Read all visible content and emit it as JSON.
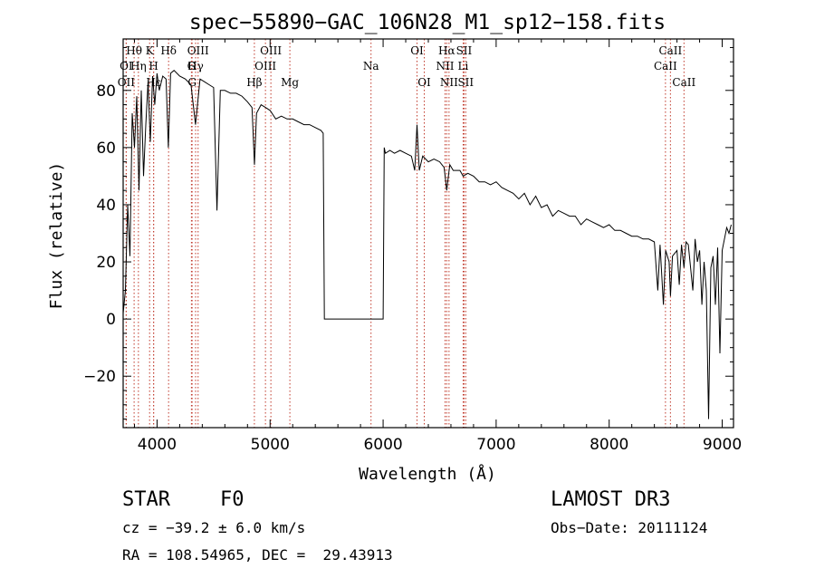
{
  "chart_data": {
    "type": "line",
    "title": "spec−55890−GAC_106N28_M1_sp12−158.fits",
    "xlabel": "Wavelength (Å)",
    "ylabel": "Flux (relative)",
    "xlim": [
      3700,
      9100
    ],
    "ylim": [
      -38,
      98
    ],
    "xticks": [
      4000,
      5000,
      6000,
      7000,
      8000,
      9000
    ],
    "yticks": [
      -20,
      0,
      20,
      40,
      60,
      80
    ],
    "grid": false,
    "series": [
      {
        "name": "flux",
        "x": [
          3700,
          3720,
          3740,
          3760,
          3780,
          3800,
          3820,
          3840,
          3860,
          3880,
          3900,
          3920,
          3940,
          3960,
          3980,
          4000,
          4020,
          4050,
          4080,
          4100,
          4120,
          4150,
          4200,
          4250,
          4300,
          4340,
          4380,
          4420,
          4460,
          4500,
          4530,
          4560,
          4600,
          4650,
          4700,
          4750,
          4800,
          4840,
          4862,
          4880,
          4920,
          4960,
          5000,
          5050,
          5100,
          5150,
          5200,
          5250,
          5300,
          5350,
          5400,
          5450,
          5470,
          5480,
          5500,
          6000,
          6010,
          6020,
          6060,
          6100,
          6150,
          6200,
          6250,
          6280,
          6300,
          6320,
          6350,
          6400,
          6450,
          6500,
          6540,
          6563,
          6590,
          6620,
          6680,
          6708,
          6750,
          6800,
          6850,
          6900,
          6950,
          7000,
          7050,
          7100,
          7150,
          7200,
          7250,
          7300,
          7350,
          7400,
          7450,
          7500,
          7550,
          7600,
          7650,
          7700,
          7750,
          7800,
          7850,
          7900,
          7950,
          8000,
          8050,
          8100,
          8150,
          8200,
          8250,
          8300,
          8350,
          8400,
          8430,
          8450,
          8480,
          8500,
          8530,
          8542,
          8560,
          8600,
          8620,
          8640,
          8662,
          8680,
          8700,
          8740,
          8760,
          8780,
          8800,
          8820,
          8840,
          8860,
          8880,
          8900,
          8920,
          8940,
          8960,
          8980,
          9000,
          9020,
          9040,
          9060,
          9080
        ],
        "values": [
          2,
          10,
          40,
          22,
          72,
          60,
          78,
          45,
          80,
          50,
          68,
          83,
          62,
          85,
          75,
          86,
          80,
          85,
          84,
          60,
          86,
          87,
          85,
          84,
          82,
          68,
          84,
          83,
          82,
          81,
          38,
          80,
          80,
          79,
          79,
          78,
          76,
          74,
          54,
          72,
          75,
          74,
          73,
          70,
          71,
          70,
          70,
          69,
          68,
          68,
          67,
          66,
          65,
          0,
          0,
          0,
          60,
          58,
          59,
          58,
          59,
          58,
          57,
          52,
          68,
          52,
          57,
          55,
          56,
          55,
          53,
          45,
          54,
          52,
          52,
          50,
          51,
          50,
          48,
          48,
          47,
          48,
          46,
          45,
          44,
          42,
          44,
          40,
          43,
          39,
          40,
          36,
          38,
          37,
          36,
          36,
          33,
          35,
          34,
          33,
          32,
          33,
          31,
          31,
          30,
          29,
          29,
          28,
          28,
          27,
          10,
          26,
          5,
          24,
          20,
          8,
          22,
          24,
          12,
          26,
          18,
          27,
          26,
          10,
          28,
          20,
          24,
          5,
          20,
          10,
          -35,
          18,
          22,
          5,
          25,
          -12,
          24,
          28,
          32,
          30,
          33
        ]
      }
    ],
    "spectral_lines": [
      {
        "label": "OΙΙ",
        "x": 3727,
        "row": 2
      },
      {
        "label": "OΙ",
        "x": 3727,
        "row": 1
      },
      {
        "label": "Hθ",
        "x": 3797,
        "row": 0
      },
      {
        "label": "Hη",
        "x": 3835,
        "row": 1
      },
      {
        "label": "K",
        "x": 3934,
        "row": 0
      },
      {
        "label": "H",
        "x": 3969,
        "row": 1
      },
      {
        "label": "Hε",
        "x": 3970,
        "row": 2
      },
      {
        "label": "Hδ",
        "x": 4102,
        "row": 0
      },
      {
        "label": "G",
        "x": 4304,
        "row": 1
      },
      {
        "label": "OΙΙΙ",
        "x": 4363,
        "row": 0
      },
      {
        "label": "Hγ",
        "x": 4341,
        "row": 1
      },
      {
        "label": "G",
        "x": 4310,
        "row": 2
      },
      {
        "label": "Hβ",
        "x": 4861,
        "row": 2
      },
      {
        "label": "OΙΙΙ",
        "x": 5007,
        "row": 0
      },
      {
        "label": "OΙΙΙ",
        "x": 4959,
        "row": 1
      },
      {
        "label": "Mg",
        "x": 5175,
        "row": 2
      },
      {
        "label": "Na",
        "x": 5893,
        "row": 1
      },
      {
        "label": "OΙ",
        "x": 6300,
        "row": 0
      },
      {
        "label": "OΙ",
        "x": 6364,
        "row": 2
      },
      {
        "label": "Hα",
        "x": 6563,
        "row": 0
      },
      {
        "label": "NΙΙ",
        "x": 6548,
        "row": 1
      },
      {
        "label": "NΙΙ",
        "x": 6583,
        "row": 2
      },
      {
        "label": "SΙΙ",
        "x": 6716,
        "row": 0
      },
      {
        "label": "Li",
        "x": 6708,
        "row": 1
      },
      {
        "label": "SΙΙ",
        "x": 6731,
        "row": 2
      },
      {
        "label": "CaΙΙ",
        "x": 8542,
        "row": 0
      },
      {
        "label": "CaΙΙ",
        "x": 8498,
        "row": 1
      },
      {
        "label": "CaΙΙ",
        "x": 8662,
        "row": 2
      }
    ]
  },
  "info": {
    "class": "STAR",
    "subclass": "F0",
    "survey": "LAMOST DR3",
    "redshift": "cz = −39.2 ± 6.0 km/s",
    "obs_date": "Obs−Date: 20111124",
    "coords": "RA = 108.54965, DEC =  29.43913"
  },
  "colors": {
    "line_markers": "#c0392b",
    "spectrum": "#000000"
  }
}
